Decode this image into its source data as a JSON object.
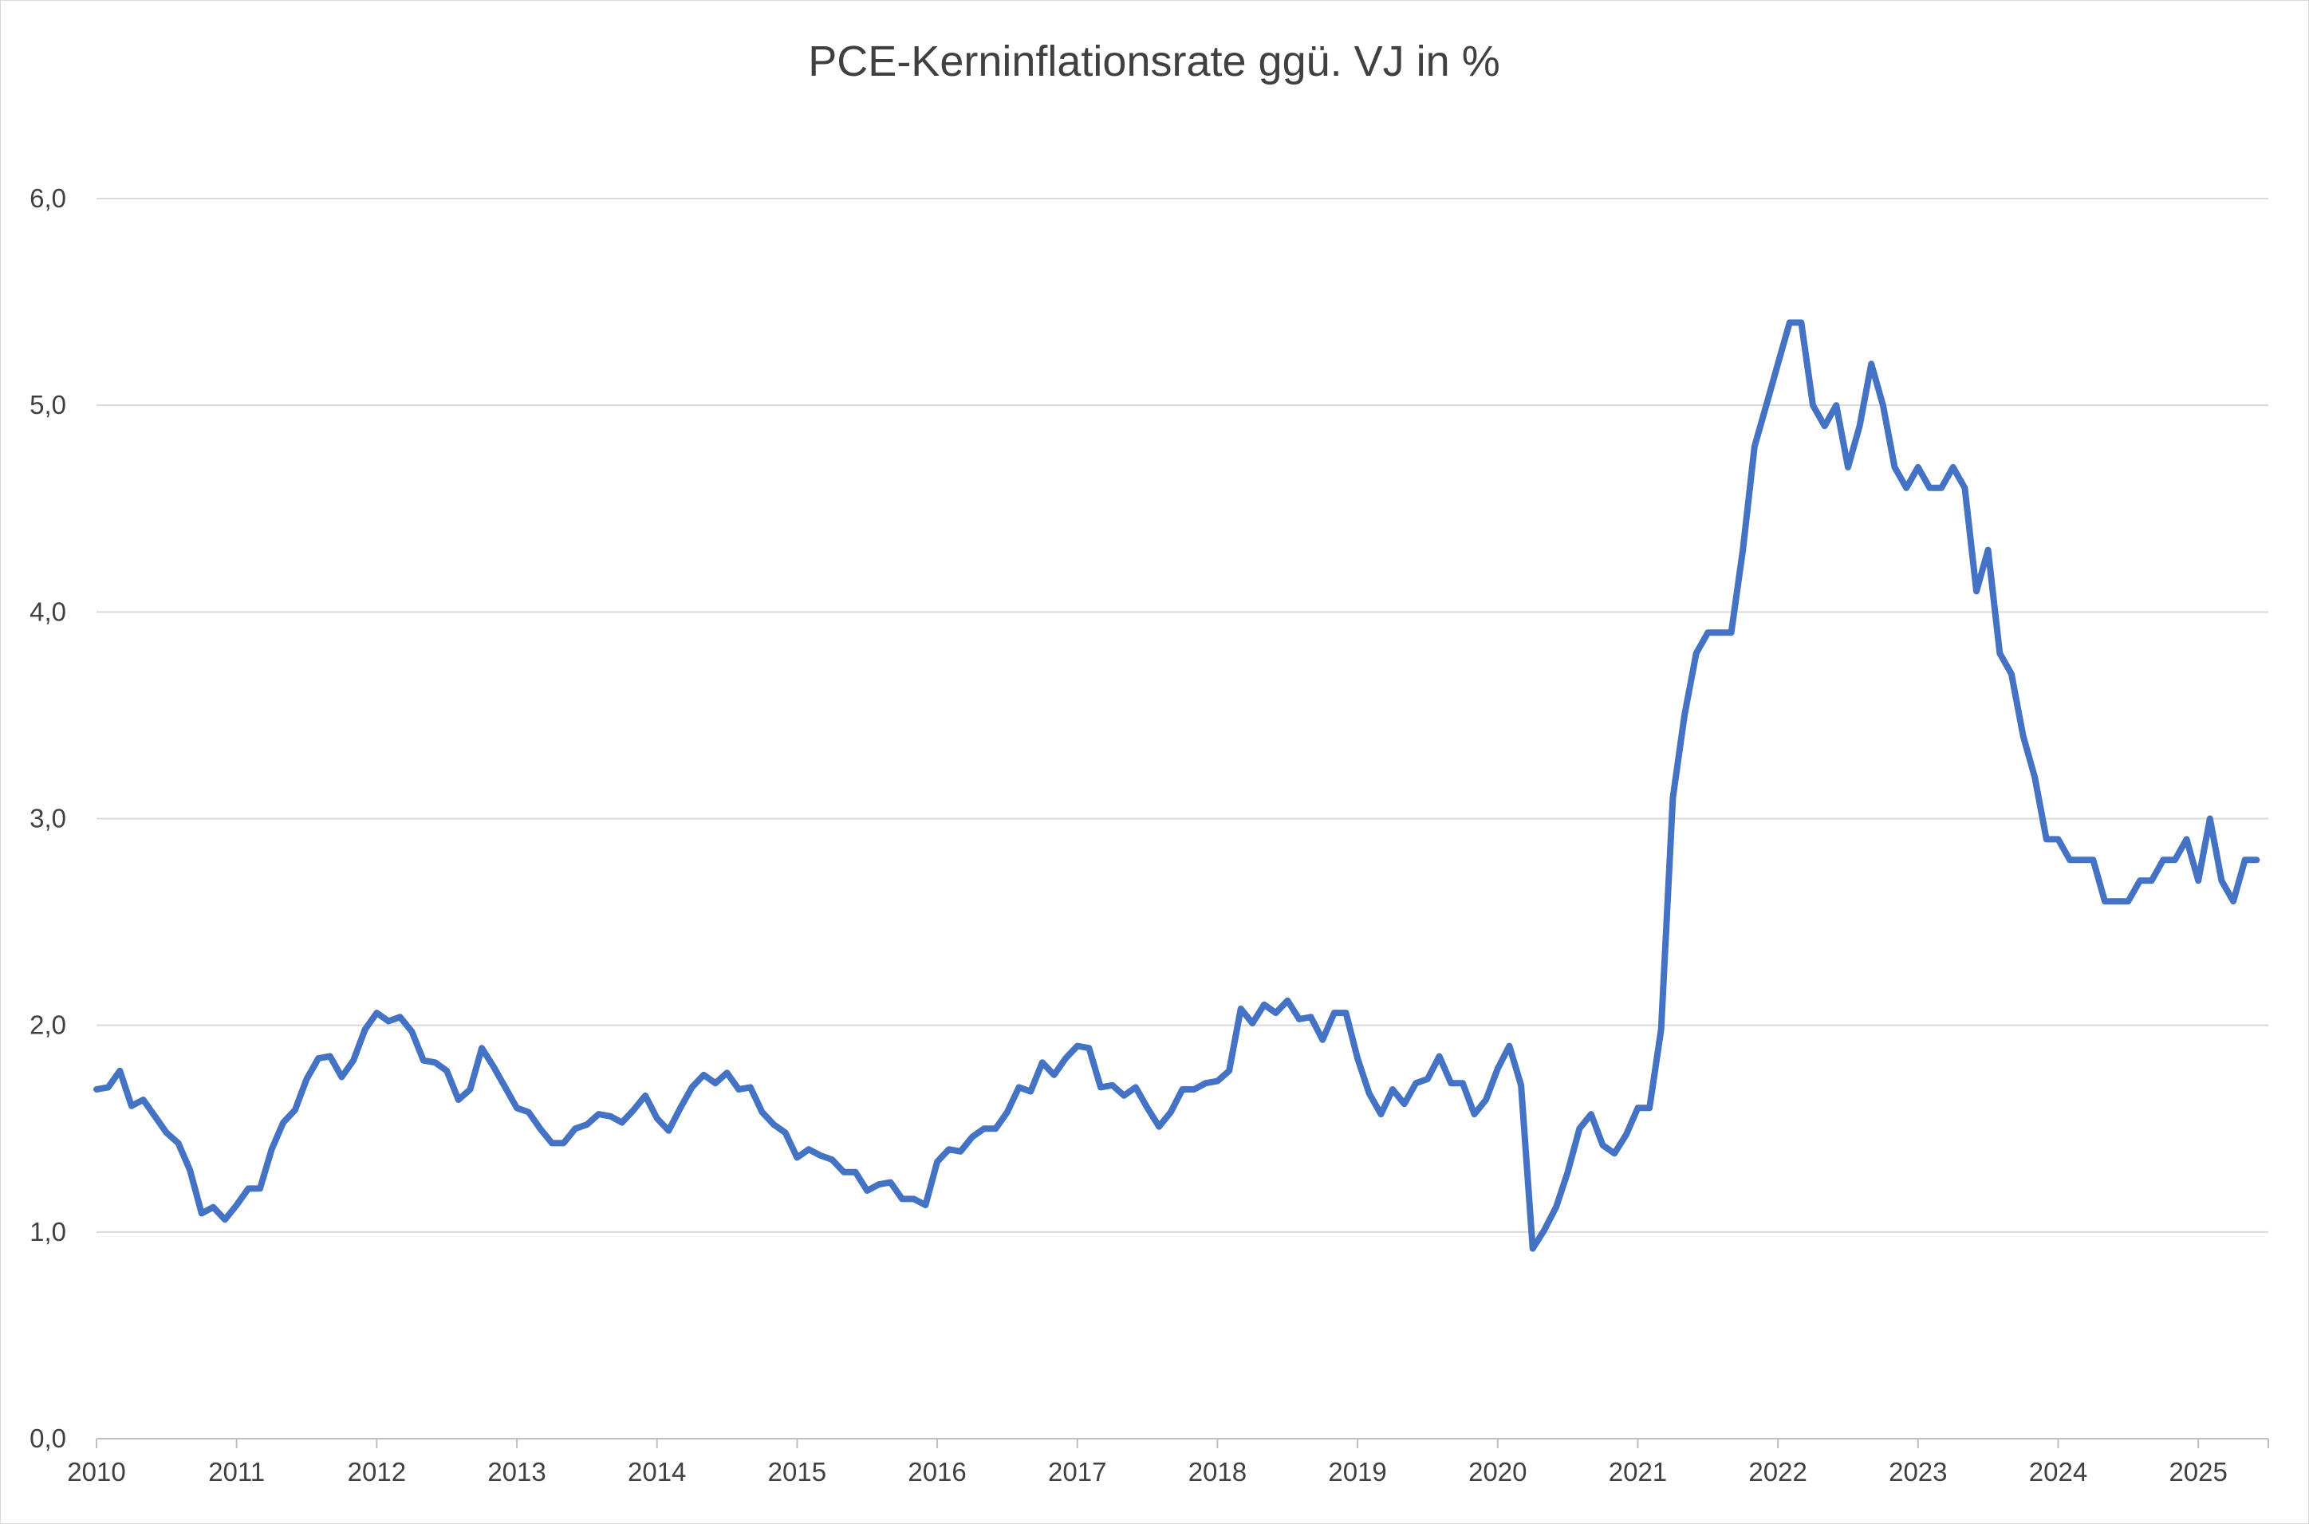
{
  "chart_data": {
    "type": "line",
    "title": "PCE-Kerninflationsrate ggü. VJ in %",
    "xlabel": "",
    "ylabel": "",
    "ylim": [
      0,
      6
    ],
    "y_ticks": [
      "0,0",
      "1,0",
      "2,0",
      "3,0",
      "4,0",
      "5,0",
      "6,0"
    ],
    "x_ticks": [
      "2010",
      "2011",
      "2012",
      "2013",
      "2014",
      "2015",
      "2016",
      "2017",
      "2018",
      "2019",
      "2020",
      "2021",
      "2022",
      "2023",
      "2024",
      "2025"
    ],
    "x_start": "2010-01",
    "x_frequency": "monthly",
    "grid": true,
    "legend": "none",
    "series": [
      {
        "color": "#4472c4",
        "values": [
          1.69,
          1.7,
          1.78,
          1.61,
          1.64,
          1.56,
          1.48,
          1.43,
          1.3,
          1.09,
          1.12,
          1.06,
          1.13,
          1.21,
          1.21,
          1.4,
          1.53,
          1.59,
          1.74,
          1.84,
          1.85,
          1.75,
          1.83,
          1.98,
          2.06,
          2.02,
          2.04,
          1.97,
          1.83,
          1.82,
          1.78,
          1.64,
          1.69,
          1.89,
          1.8,
          1.7,
          1.6,
          1.58,
          1.5,
          1.43,
          1.43,
          1.5,
          1.52,
          1.57,
          1.56,
          1.53,
          1.59,
          1.66,
          1.55,
          1.49,
          1.6,
          1.7,
          1.76,
          1.72,
          1.77,
          1.69,
          1.7,
          1.58,
          1.52,
          1.48,
          1.36,
          1.4,
          1.37,
          1.35,
          1.29,
          1.29,
          1.2,
          1.23,
          1.24,
          1.16,
          1.16,
          1.13,
          1.34,
          1.4,
          1.39,
          1.46,
          1.5,
          1.5,
          1.58,
          1.7,
          1.68,
          1.82,
          1.76,
          1.84,
          1.9,
          1.89,
          1.7,
          1.71,
          1.66,
          1.7,
          1.6,
          1.51,
          1.58,
          1.69,
          1.69,
          1.72,
          1.73,
          1.78,
          2.08,
          2.01,
          2.1,
          2.06,
          2.12,
          2.03,
          2.04,
          1.93,
          2.06,
          2.06,
          1.84,
          1.67,
          1.57,
          1.69,
          1.62,
          1.72,
          1.74,
          1.85,
          1.72,
          1.72,
          1.57,
          1.64,
          1.79,
          1.9,
          1.71,
          0.92,
          1.01,
          1.12,
          1.29,
          1.5,
          1.57,
          1.42,
          1.38,
          1.47,
          1.6,
          1.6,
          1.98,
          3.1,
          3.5,
          3.8,
          3.9,
          3.9,
          3.9,
          4.3,
          4.8,
          5.0,
          5.2,
          5.4,
          5.4,
          5.0,
          4.9,
          5.0,
          4.7,
          4.9,
          5.2,
          5.0,
          4.7,
          4.6,
          4.7,
          4.6,
          4.6,
          4.7,
          4.6,
          4.1,
          4.3,
          3.8,
          3.7,
          3.4,
          3.2,
          2.9,
          2.9,
          2.8,
          2.8,
          2.8,
          2.6,
          2.6,
          2.6,
          2.7,
          2.7,
          2.8,
          2.8,
          2.9,
          2.7,
          3.0,
          2.7,
          2.6,
          2.8,
          2.8
        ]
      }
    ]
  }
}
